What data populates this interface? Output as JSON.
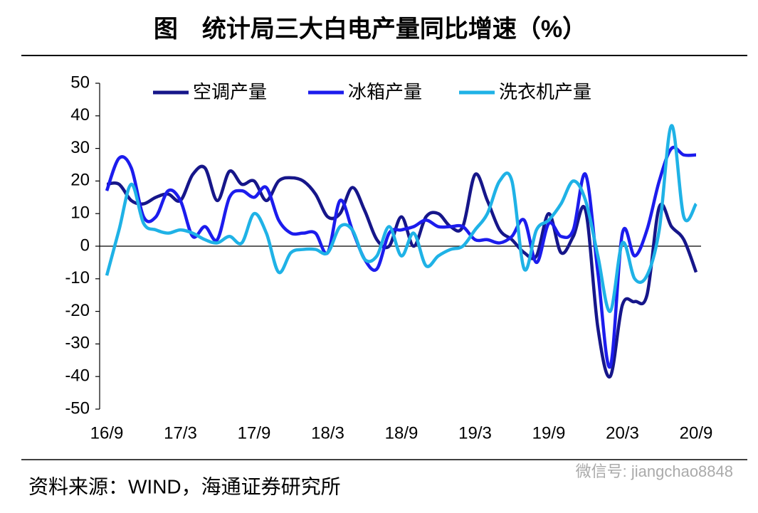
{
  "chart_data": {
    "type": "line",
    "title": "图　统计局三大白电产量同比增速（%）",
    "source": "资料来源：WIND，海通证券研究所",
    "watermark": "微信号: jiangchao8848",
    "categories": [
      "16/9",
      null,
      null,
      null,
      null,
      null,
      "17/3",
      null,
      null,
      null,
      null,
      null,
      "17/9",
      null,
      null,
      null,
      null,
      null,
      "18/3",
      null,
      null,
      null,
      null,
      null,
      "18/9",
      null,
      null,
      null,
      null,
      null,
      "19/3",
      null,
      null,
      null,
      null,
      null,
      "19/9",
      null,
      null,
      null,
      null,
      null,
      "20/3",
      null,
      null,
      null,
      null,
      null,
      "20/9"
    ],
    "series": [
      {
        "name": "空调产量",
        "color": "#16168a",
        "values": [
          19,
          19,
          14,
          13,
          15,
          16,
          14,
          22,
          24,
          14,
          23,
          19,
          20,
          14,
          20,
          21,
          20,
          16,
          9,
          10,
          18,
          11,
          2,
          0,
          9,
          0,
          9,
          10,
          6,
          6,
          22,
          14,
          5,
          2,
          -2,
          -3,
          10,
          -2,
          3,
          11,
          -25,
          -40,
          -18,
          -17,
          -15,
          12,
          6,
          2,
          -8
        ]
      },
      {
        "name": "冰箱产量",
        "color": "#1c1ced",
        "values": [
          17,
          27,
          24,
          9,
          9,
          17,
          14,
          3,
          6,
          2,
          15,
          17,
          15,
          18,
          8,
          4,
          4,
          4,
          -2,
          14,
          5,
          -4,
          -7,
          4,
          5,
          6,
          8,
          6,
          6,
          6,
          2,
          2,
          1,
          3,
          8,
          -5,
          7,
          3,
          5,
          22,
          -8,
          -37,
          4,
          -3,
          5,
          20,
          30,
          28,
          28
        ]
      },
      {
        "name": "洗衣机产量",
        "color": "#1fb2e6",
        "values": [
          -9,
          5,
          19,
          7,
          5,
          4,
          5,
          4,
          2,
          1,
          3,
          1,
          10,
          4,
          -8,
          -2,
          -1,
          -1,
          -2,
          6,
          5,
          -4,
          -3,
          6,
          -3,
          4,
          -6,
          -3,
          -1,
          0,
          5,
          10,
          20,
          20,
          -7,
          5,
          8,
          13,
          20,
          14,
          -3,
          -20,
          1,
          -10,
          -9,
          5,
          37,
          9,
          13
        ]
      }
    ],
    "ylim": [
      -50,
      50
    ],
    "yticks": [
      -50,
      -40,
      -30,
      -20,
      -10,
      0,
      10,
      20,
      30,
      40,
      50
    ],
    "legend": "top"
  }
}
